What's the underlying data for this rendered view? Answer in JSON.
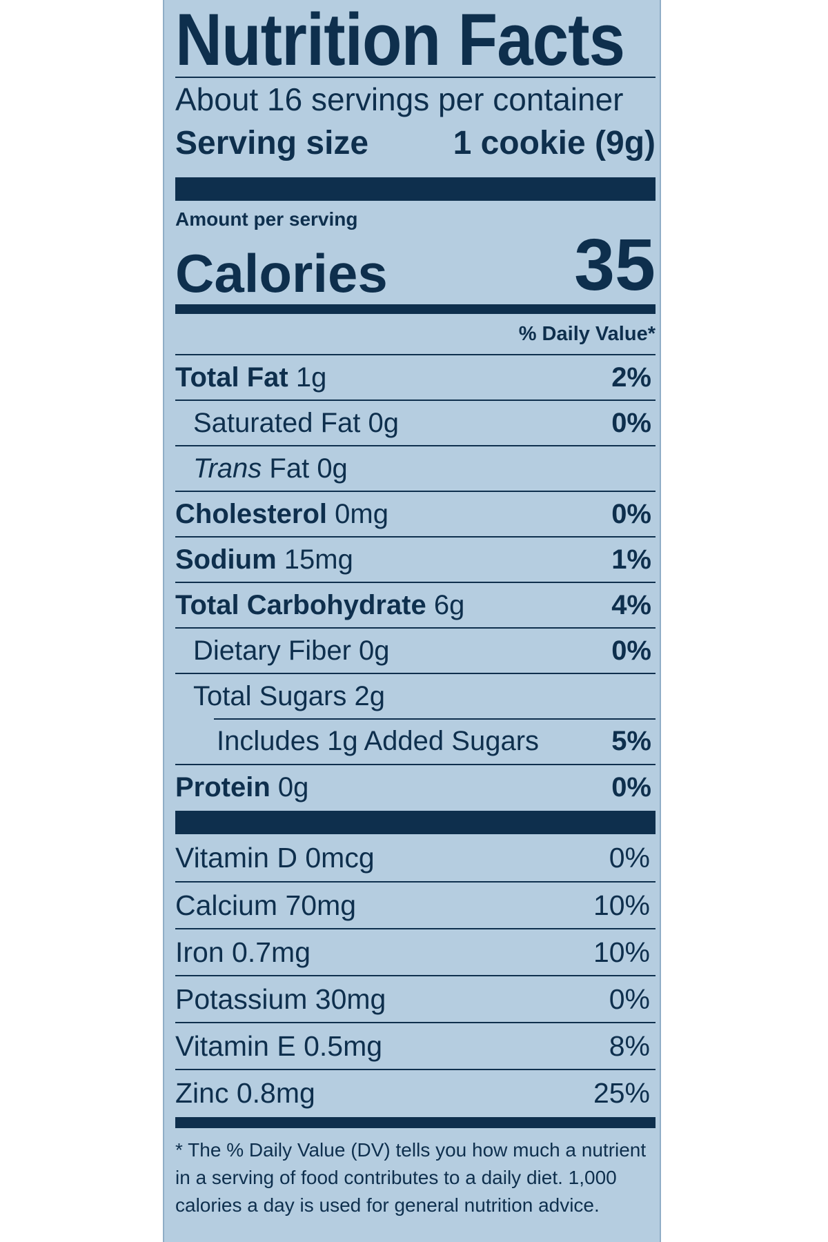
{
  "label": {
    "title": "Nutrition Facts",
    "servings_per_container": "About 16 servings per container",
    "serving_size_label": "Serving size",
    "serving_size_value": "1 cookie (9g)",
    "amount_per_serving": "Amount per serving",
    "calories_label": "Calories",
    "calories_value": "35",
    "daily_value_header": "% Daily Value*",
    "nutrients": [
      {
        "name": "Total Fat",
        "amount": "1g",
        "dv": "2%"
      },
      {
        "name": "Saturated Fat 0g",
        "dv": "0%"
      },
      {
        "name_italic": "Trans",
        "name_rest": "Fat 0g"
      },
      {
        "name": "Cholesterol",
        "amount": "0mg",
        "dv": "0%"
      },
      {
        "name": "Sodium",
        "amount": "15mg",
        "dv": "1%"
      },
      {
        "name": "Total Carbohydrate",
        "amount": "6g",
        "dv": "4%"
      },
      {
        "name": "Dietary Fiber 0g",
        "dv": "0%"
      },
      {
        "name": "Total Sugars 2g"
      },
      {
        "name": "Includes 1g Added Sugars",
        "dv": "5%"
      },
      {
        "name": "Protein",
        "amount": "0g",
        "dv": "0%"
      }
    ],
    "vitamins": [
      {
        "name": "Vitamin D 0mcg",
        "dv": "0%"
      },
      {
        "name": "Calcium 70mg",
        "dv": "10%"
      },
      {
        "name": "Iron 0.7mg",
        "dv": "10%"
      },
      {
        "name": "Potassium 30mg",
        "dv": "0%"
      },
      {
        "name": "Vitamin E 0.5mg",
        "dv": "8%"
      },
      {
        "name": "Zinc 0.8mg",
        "dv": "25%"
      }
    ],
    "footnote": "* The % Daily Value (DV) tells you how much a nutrient in a serving of food contributes to a daily diet. 1,000 calories a day is used for general nutrition advice."
  }
}
